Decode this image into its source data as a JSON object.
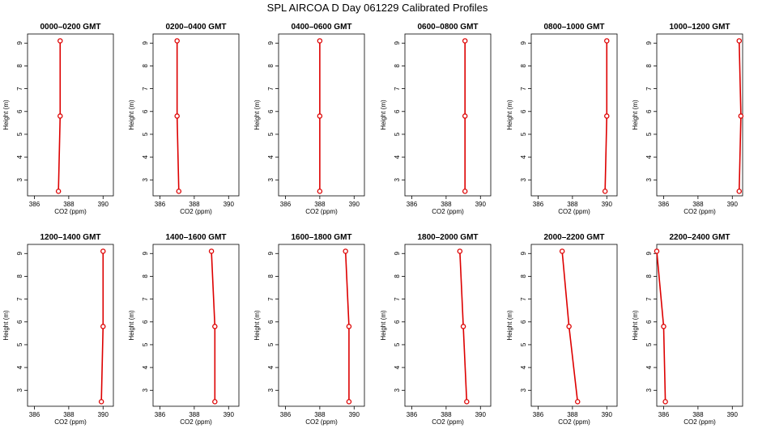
{
  "title": "SPL AIRCOA D  Day 061229  Calibrated Profiles",
  "colors": {
    "profile": "#dd0000",
    "axes": "#000000"
  },
  "chart_data": [
    {
      "type": "line",
      "title": "0000–0200 GMT",
      "xlabel": "CO2 (ppm)",
      "ylabel": "Height (m)",
      "xlim": [
        385.6,
        390.6
      ],
      "ylim": [
        2.3,
        9.4
      ],
      "xticks": [
        386,
        388,
        390
      ],
      "xtick_labels": [
        "386",
        "388",
        "390"
      ],
      "yticks": [
        3,
        4,
        5,
        6,
        7,
        8,
        9
      ],
      "grid": false,
      "series": [
        {
          "x": [
            387.4,
            387.5,
            387.5
          ],
          "y": [
            2.5,
            5.8,
            9.1
          ]
        }
      ]
    },
    {
      "type": "line",
      "title": "0200–0400 GMT",
      "xlabel": "CO2 (ppm)",
      "ylabel": "Height (m)",
      "xlim": [
        385.6,
        390.6
      ],
      "ylim": [
        2.3,
        9.4
      ],
      "xticks": [
        386,
        388,
        390
      ],
      "xtick_labels": [
        "386",
        "388",
        "390"
      ],
      "yticks": [
        3,
        4,
        5,
        6,
        7,
        8,
        9
      ],
      "grid": false,
      "series": [
        {
          "x": [
            387.1,
            387.0,
            387.0
          ],
          "y": [
            2.5,
            5.8,
            9.1
          ]
        }
      ]
    },
    {
      "type": "line",
      "title": "0400–0600 GMT",
      "xlabel": "CO2 (ppm)",
      "ylabel": "Height (m)",
      "xlim": [
        385.6,
        390.6
      ],
      "ylim": [
        2.3,
        9.4
      ],
      "xticks": [
        386,
        388,
        390
      ],
      "xtick_labels": [
        "386",
        "388",
        "390"
      ],
      "yticks": [
        3,
        4,
        5,
        6,
        7,
        8,
        9
      ],
      "grid": false,
      "series": [
        {
          "x": [
            388.0,
            388.0,
            388.0
          ],
          "y": [
            2.5,
            5.8,
            9.1
          ]
        }
      ]
    },
    {
      "type": "line",
      "title": "0600–0800 GMT",
      "xlabel": "CO2 (ppm)",
      "ylabel": "Height (m)",
      "xlim": [
        385.6,
        390.6
      ],
      "ylim": [
        2.3,
        9.4
      ],
      "xticks": [
        386,
        388,
        390
      ],
      "xtick_labels": [
        "386",
        "388",
        "390"
      ],
      "yticks": [
        3,
        4,
        5,
        6,
        7,
        8,
        9
      ],
      "grid": false,
      "series": [
        {
          "x": [
            389.1,
            389.1,
            389.1
          ],
          "y": [
            2.5,
            5.8,
            9.1
          ]
        }
      ]
    },
    {
      "type": "line",
      "title": "0800–1000 GMT",
      "xlabel": "CO2 (ppm)",
      "ylabel": "Height (m)",
      "xlim": [
        385.6,
        390.6
      ],
      "ylim": [
        2.3,
        9.4
      ],
      "xticks": [
        386,
        388,
        390
      ],
      "xtick_labels": [
        "386",
        "388",
        "390"
      ],
      "yticks": [
        3,
        4,
        5,
        6,
        7,
        8,
        9
      ],
      "grid": false,
      "series": [
        {
          "x": [
            389.9,
            390.0,
            390.0
          ],
          "y": [
            2.5,
            5.8,
            9.1
          ]
        }
      ]
    },
    {
      "type": "line",
      "title": "1000–1200 GMT",
      "xlabel": "CO2 (ppm)",
      "ylabel": "Height (m)",
      "xlim": [
        385.6,
        390.6
      ],
      "ylim": [
        2.3,
        9.4
      ],
      "xticks": [
        386,
        388,
        390
      ],
      "xtick_labels": [
        "386",
        "388",
        "390"
      ],
      "yticks": [
        3,
        4,
        5,
        6,
        7,
        8,
        9
      ],
      "grid": false,
      "series": [
        {
          "x": [
            390.4,
            390.5,
            390.4
          ],
          "y": [
            2.5,
            5.8,
            9.1
          ]
        }
      ]
    },
    {
      "type": "line",
      "title": "1200–1400 GMT",
      "xlabel": "CO2 (ppm)",
      "ylabel": "Height (m)",
      "xlim": [
        385.6,
        390.6
      ],
      "ylim": [
        2.3,
        9.4
      ],
      "xticks": [
        386,
        388,
        390
      ],
      "xtick_labels": [
        "386",
        "388",
        "390"
      ],
      "yticks": [
        3,
        4,
        5,
        6,
        7,
        8,
        9
      ],
      "grid": false,
      "series": [
        {
          "x": [
            389.9,
            390.0,
            390.0
          ],
          "y": [
            2.5,
            5.8,
            9.1
          ]
        }
      ]
    },
    {
      "type": "line",
      "title": "1400–1600 GMT",
      "xlabel": "CO2 (ppm)",
      "ylabel": "Height (m)",
      "xlim": [
        385.6,
        390.6
      ],
      "ylim": [
        2.3,
        9.4
      ],
      "xticks": [
        386,
        388,
        390
      ],
      "xtick_labels": [
        "386",
        "388",
        "390"
      ],
      "yticks": [
        3,
        4,
        5,
        6,
        7,
        8,
        9
      ],
      "grid": false,
      "series": [
        {
          "x": [
            389.2,
            389.2,
            389.0
          ],
          "y": [
            2.5,
            5.8,
            9.1
          ]
        }
      ]
    },
    {
      "type": "line",
      "title": "1600–1800 GMT",
      "xlabel": "CO2 (ppm)",
      "ylabel": "Height (m)",
      "xlim": [
        385.6,
        390.6
      ],
      "ylim": [
        2.3,
        9.4
      ],
      "xticks": [
        386,
        388,
        390
      ],
      "xtick_labels": [
        "386",
        "388",
        "390"
      ],
      "yticks": [
        3,
        4,
        5,
        6,
        7,
        8,
        9
      ],
      "grid": false,
      "series": [
        {
          "x": [
            389.7,
            389.7,
            389.5
          ],
          "y": [
            2.5,
            5.8,
            9.1
          ]
        }
      ]
    },
    {
      "type": "line",
      "title": "1800–2000 GMT",
      "xlabel": "CO2 (ppm)",
      "ylabel": "Height (m)",
      "xlim": [
        385.6,
        390.6
      ],
      "ylim": [
        2.3,
        9.4
      ],
      "xticks": [
        386,
        388,
        390
      ],
      "xtick_labels": [
        "386",
        "388",
        "390"
      ],
      "yticks": [
        3,
        4,
        5,
        6,
        7,
        8,
        9
      ],
      "grid": false,
      "series": [
        {
          "x": [
            389.2,
            389.0,
            388.8
          ],
          "y": [
            2.5,
            5.8,
            9.1
          ]
        }
      ]
    },
    {
      "type": "line",
      "title": "2000–2200 GMT",
      "xlabel": "CO2 (ppm)",
      "ylabel": "Height (m)",
      "xlim": [
        385.6,
        390.6
      ],
      "ylim": [
        2.3,
        9.4
      ],
      "xticks": [
        386,
        388,
        390
      ],
      "xtick_labels": [
        "386",
        "388",
        "390"
      ],
      "yticks": [
        3,
        4,
        5,
        6,
        7,
        8,
        9
      ],
      "grid": false,
      "series": [
        {
          "x": [
            388.3,
            387.8,
            387.4
          ],
          "y": [
            2.5,
            5.8,
            9.1
          ]
        }
      ]
    },
    {
      "type": "line",
      "title": "2200–2400 GMT",
      "xlabel": "CO2 (ppm)",
      "ylabel": "Height (m)",
      "xlim": [
        385.6,
        390.6
      ],
      "ylim": [
        2.3,
        9.4
      ],
      "xticks": [
        386,
        388,
        390
      ],
      "xtick_labels": [
        "386",
        "388",
        "390"
      ],
      "yticks": [
        3,
        4,
        5,
        6,
        7,
        8,
        9
      ],
      "grid": false,
      "series": [
        {
          "x": [
            386.1,
            386.0,
            385.6
          ],
          "y": [
            2.5,
            5.8,
            9.1
          ]
        }
      ]
    }
  ]
}
